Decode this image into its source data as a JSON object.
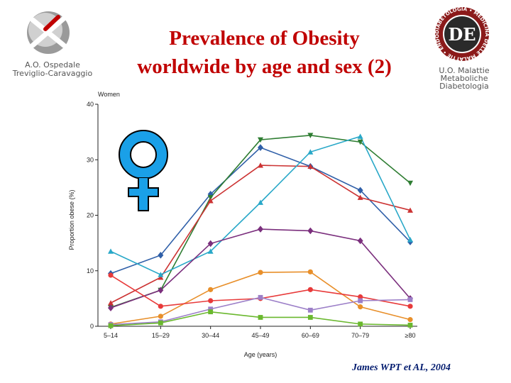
{
  "header": {
    "title_line1": "Prevalence of Obesity",
    "title_line2": "worldwide by age and sex (2)",
    "org_left_line1": "A.O. Ospedale",
    "org_left_line2": "Treviglio-Caravaggio",
    "org_right_line1": "U.O. Malattie",
    "org_right_line2": "Metaboliche",
    "org_right_line3": "Diabetologia",
    "logo_right_ring_text": "DIABETOLOGIA • MEDICINA DELLE MALATTIE • ENDOCRINOLOGIA •",
    "logo_right_monogram": "DE"
  },
  "citation": "James WPT et AL, 2004",
  "colors": {
    "title": "#c00000",
    "venus": "#1aa0e8",
    "citation": "#001a6e"
  },
  "chart_data": {
    "type": "line",
    "title": "Women",
    "xlabel": "Age (years)",
    "ylabel": "Proportion obese (%)",
    "ylim": [
      0,
      40
    ],
    "yticks": [
      "0",
      "10",
      "20",
      "30",
      "40"
    ],
    "categories": [
      "5–14",
      "15–29",
      "30–44",
      "45–49",
      "60–69",
      "70–79",
      "≥80"
    ],
    "grid": false,
    "legend": "none",
    "series": [
      {
        "color": "#2f5fa8",
        "marker": "diamond",
        "values": [
          9.5,
          12.8,
          23.8,
          32.2,
          28.8,
          24.5,
          15.2
        ]
      },
      {
        "color": "#2e7d32",
        "marker": "triangle-down",
        "values": [
          3.4,
          6.5,
          23.2,
          33.6,
          34.4,
          33.2,
          25.8
        ]
      },
      {
        "color": "#cc3333",
        "marker": "triangle-up",
        "values": [
          4.2,
          8.8,
          22.6,
          29.0,
          28.8,
          23.2,
          20.9
        ]
      },
      {
        "color": "#29a8c8",
        "marker": "triangle-up",
        "values": [
          13.5,
          9.3,
          13.5,
          22.3,
          31.4,
          34.2,
          15.6
        ]
      },
      {
        "color": "#7b2f7d",
        "marker": "diamond",
        "values": [
          3.3,
          6.5,
          14.9,
          17.5,
          17.2,
          15.4,
          5.0
        ]
      },
      {
        "color": "#e88f2a",
        "marker": "circle",
        "values": [
          0.4,
          1.8,
          6.6,
          9.7,
          9.8,
          3.5,
          1.2
        ]
      },
      {
        "color": "#e83a3a",
        "marker": "circle",
        "values": [
          9.2,
          3.6,
          4.6,
          5.0,
          6.6,
          5.3,
          3.6
        ]
      },
      {
        "color": "#9c7fc8",
        "marker": "square",
        "values": [
          0.3,
          0.8,
          3.1,
          5.2,
          2.9,
          4.6,
          4.8
        ]
      },
      {
        "color": "#6ab82e",
        "marker": "square",
        "values": [
          0.1,
          0.6,
          2.6,
          1.6,
          1.6,
          0.4,
          0.2
        ]
      }
    ]
  }
}
